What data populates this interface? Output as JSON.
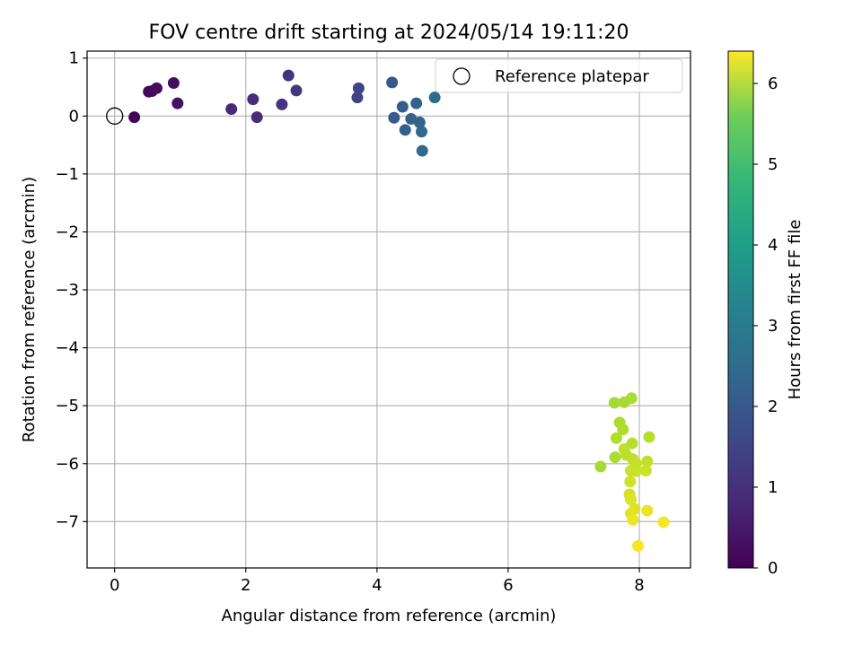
{
  "chart_data": {
    "type": "scatter",
    "title": "FOV centre drift starting at 2024/05/14 19:11:20",
    "xlabel": "Angular distance from reference (arcmin)",
    "ylabel": "Rotation from reference (arcmin)",
    "xlim": [
      -0.42,
      8.78
    ],
    "ylim": [
      -7.8,
      1.12
    ],
    "xticks": [
      0,
      2,
      4,
      6,
      8
    ],
    "yticks": [
      1,
      0,
      -1,
      -2,
      -3,
      -4,
      -5,
      -6,
      -7
    ],
    "grid": true,
    "legend": {
      "placement": "top-right",
      "entries": [
        "Reference platepar"
      ]
    },
    "reference_point": {
      "x": 0,
      "y": 0,
      "label": "Reference platepar"
    },
    "colorbar": {
      "label": "Hours from first FF file",
      "range": [
        0,
        6.4
      ],
      "ticks": [
        0,
        1,
        2,
        3,
        4,
        5,
        6
      ],
      "colormap": "viridis"
    },
    "points": [
      {
        "x": 0.3,
        "y": -0.02,
        "h": 0.05
      },
      {
        "x": 0.52,
        "y": 0.42,
        "h": 0.1
      },
      {
        "x": 0.57,
        "y": 0.43,
        "h": 0.15
      },
      {
        "x": 0.64,
        "y": 0.48,
        "h": 0.18
      },
      {
        "x": 0.9,
        "y": 0.57,
        "h": 0.25
      },
      {
        "x": 0.96,
        "y": 0.22,
        "h": 0.3
      },
      {
        "x": 1.78,
        "y": 0.12,
        "h": 0.75
      },
      {
        "x": 2.11,
        "y": 0.29,
        "h": 0.82
      },
      {
        "x": 2.17,
        "y": -0.02,
        "h": 0.85
      },
      {
        "x": 2.55,
        "y": 0.2,
        "h": 0.95
      },
      {
        "x": 2.65,
        "y": 0.7,
        "h": 1.0
      },
      {
        "x": 2.77,
        "y": 0.44,
        "h": 1.05
      },
      {
        "x": 3.7,
        "y": 0.32,
        "h": 1.3
      },
      {
        "x": 3.72,
        "y": 0.48,
        "h": 1.35
      },
      {
        "x": 4.23,
        "y": 0.58,
        "h": 1.75
      },
      {
        "x": 4.26,
        "y": -0.03,
        "h": 1.8
      },
      {
        "x": 4.39,
        "y": 0.16,
        "h": 1.85
      },
      {
        "x": 4.43,
        "y": -0.24,
        "h": 1.9
      },
      {
        "x": 4.52,
        "y": -0.05,
        "h": 1.95
      },
      {
        "x": 4.6,
        "y": 0.22,
        "h": 2.0
      },
      {
        "x": 4.65,
        "y": -0.11,
        "h": 2.05
      },
      {
        "x": 4.68,
        "y": -0.27,
        "h": 2.1
      },
      {
        "x": 4.69,
        "y": -0.6,
        "h": 2.15
      },
      {
        "x": 4.88,
        "y": 0.32,
        "h": 2.2
      },
      {
        "x": 7.88,
        "y": -4.87,
        "h": 5.6
      },
      {
        "x": 7.62,
        "y": -4.95,
        "h": 5.5
      },
      {
        "x": 7.77,
        "y": -4.94,
        "h": 5.55
      },
      {
        "x": 7.7,
        "y": -5.29,
        "h": 5.6
      },
      {
        "x": 7.75,
        "y": -5.41,
        "h": 5.62
      },
      {
        "x": 7.65,
        "y": -5.56,
        "h": 5.65
      },
      {
        "x": 8.15,
        "y": -5.54,
        "h": 5.7
      },
      {
        "x": 7.89,
        "y": -5.65,
        "h": 5.72
      },
      {
        "x": 7.77,
        "y": -5.75,
        "h": 5.75
      },
      {
        "x": 7.8,
        "y": -5.85,
        "h": 5.78
      },
      {
        "x": 7.63,
        "y": -5.89,
        "h": 5.58
      },
      {
        "x": 7.41,
        "y": -6.05,
        "h": 5.55
      },
      {
        "x": 7.9,
        "y": -5.92,
        "h": 5.8
      },
      {
        "x": 8.12,
        "y": -5.96,
        "h": 5.82
      },
      {
        "x": 7.95,
        "y": -6.0,
        "h": 5.85
      },
      {
        "x": 7.87,
        "y": -6.12,
        "h": 5.88
      },
      {
        "x": 7.95,
        "y": -6.13,
        "h": 5.9
      },
      {
        "x": 8.1,
        "y": -6.12,
        "h": 5.92
      },
      {
        "x": 7.86,
        "y": -6.31,
        "h": 5.95
      },
      {
        "x": 7.85,
        "y": -6.53,
        "h": 6.0
      },
      {
        "x": 7.87,
        "y": -6.62,
        "h": 6.05
      },
      {
        "x": 7.93,
        "y": -6.78,
        "h": 6.1
      },
      {
        "x": 7.87,
        "y": -6.86,
        "h": 6.15
      },
      {
        "x": 8.12,
        "y": -6.81,
        "h": 6.2
      },
      {
        "x": 7.9,
        "y": -6.97,
        "h": 6.25
      },
      {
        "x": 8.37,
        "y": -7.01,
        "h": 6.3
      },
      {
        "x": 7.98,
        "y": -7.42,
        "h": 6.35
      }
    ]
  }
}
